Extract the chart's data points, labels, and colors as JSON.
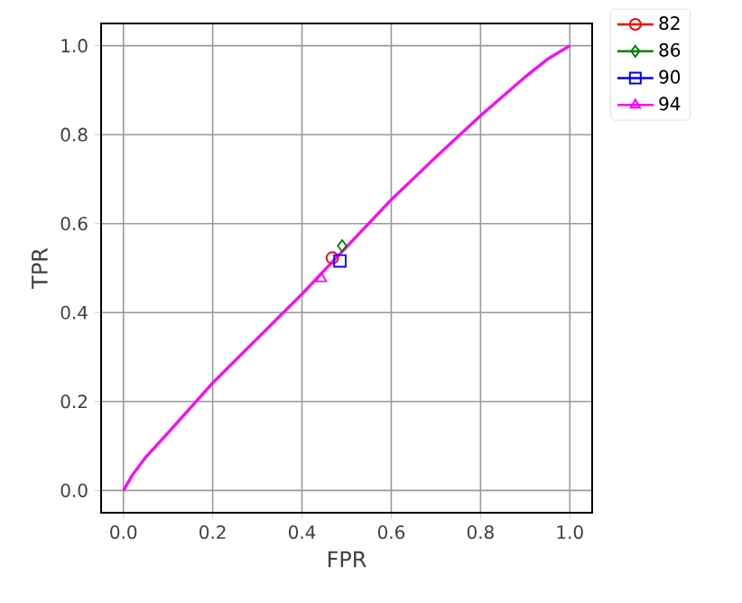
{
  "chart_data": {
    "type": "line",
    "xlabel": "FPR",
    "ylabel": "TPR",
    "xlim": [
      -0.05,
      1.05
    ],
    "ylim": [
      -0.05,
      1.05
    ],
    "xticks": [
      {
        "value": 0,
        "label": "0.0"
      },
      0.2,
      0.4,
      0.6,
      0.8,
      {
        "value": 1,
        "label": "1.0"
      }
    ],
    "yticks": [
      {
        "value": 0,
        "label": "0.0"
      },
      0.2,
      0.4,
      0.6,
      0.8,
      {
        "value": 1,
        "label": "1.0"
      }
    ],
    "grid": true,
    "legend": "top right",
    "line_style": "solid",
    "series": [
      {
        "name": "82",
        "type": "scatter",
        "color": "#ff0000",
        "marker": "circle",
        "x": [
          0.468
        ],
        "values": [
          0.523
        ]
      },
      {
        "name": "86",
        "type": "scatter",
        "color": "#008000",
        "marker": "diamond",
        "x": [
          0.49
        ],
        "values": [
          0.55
        ]
      },
      {
        "name": "90",
        "type": "scatter",
        "color": "#0000ff",
        "marker": "square",
        "x": [
          0.485
        ],
        "values": [
          0.516
        ]
      },
      {
        "name": "94",
        "type": "scatter",
        "color": "#ff00ff",
        "marker": "triangle",
        "x": [
          0.443
        ],
        "values": [
          0.477
        ]
      },
      {
        "color": "#ff00ff",
        "x": [
          0,
          0.02,
          0.05,
          0.1,
          0.2,
          0.3,
          0.4,
          0.5,
          0.6,
          0.7,
          0.8,
          0.9,
          0.95,
          1
        ],
        "values": [
          0,
          0.035,
          0.075,
          0.13,
          0.242,
          0.342,
          0.442,
          0.548,
          0.654,
          0.75,
          0.843,
          0.93,
          0.97,
          1
        ]
      }
    ]
  }
}
